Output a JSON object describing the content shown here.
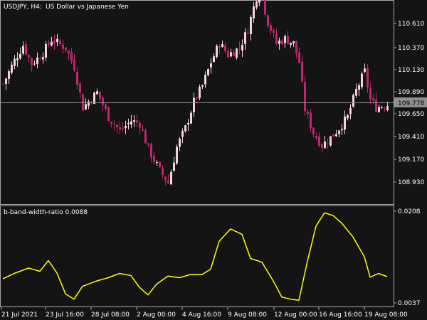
{
  "window": {
    "symbol": "USDJPY, H4:",
    "description": "US Dollar vs Japanese Yen"
  },
  "indicator": {
    "label": "b-band-width-ratio 0.0088"
  },
  "colors": {
    "background": "#141414",
    "bull_candle": "#f4d3d9",
    "bear_candle": "#c0266e",
    "indicator_line": "#ffff00",
    "axis": "#a8a8a8",
    "price_line": "#8c8c8c",
    "price_tag_bg": "#8f8f8f"
  },
  "price_scale": {
    "labels": [
      "110.610",
      "110.370",
      "110.130",
      "109.890",
      "109.650",
      "109.410",
      "109.170",
      "108.930"
    ],
    "current_price": "109.778"
  },
  "indicator_scale": {
    "labels": [
      "0.0208",
      "0.0037"
    ]
  },
  "time_scale": {
    "labels": [
      "21 Jul 2021",
      "23 Jul 16:00",
      "28 Jul 08:00",
      "2 Aug 00:00",
      "4 Aug 16:00",
      "9 Aug 08:00",
      "12 Aug 00:00",
      "16 Aug 16:00",
      "19 Aug 08:00"
    ]
  },
  "chart_data": {
    "type": "candlestick",
    "symbol": "USDJPY",
    "timeframe": "H4",
    "price_range": [
      108.81,
      111.1
    ],
    "close_path": [
      {
        "i": 0,
        "close": 109.97
      },
      {
        "i": 4,
        "close": 110.22
      },
      {
        "i": 7,
        "close": 110.38
      },
      {
        "i": 10,
        "close": 110.18
      },
      {
        "i": 14,
        "close": 110.3
      },
      {
        "i": 17,
        "close": 110.44
      },
      {
        "i": 22,
        "close": 110.35
      },
      {
        "i": 25,
        "close": 110.15
      },
      {
        "i": 28,
        "close": 109.72
      },
      {
        "i": 33,
        "close": 109.88
      },
      {
        "i": 37,
        "close": 109.62
      },
      {
        "i": 41,
        "close": 109.47
      },
      {
        "i": 45,
        "close": 109.58
      },
      {
        "i": 48,
        "close": 109.55
      },
      {
        "i": 51,
        "close": 109.28
      },
      {
        "i": 55,
        "close": 109.05
      },
      {
        "i": 58,
        "close": 108.92
      },
      {
        "i": 61,
        "close": 109.3
      },
      {
        "i": 64,
        "close": 109.5
      },
      {
        "i": 67,
        "close": 109.78
      },
      {
        "i": 70,
        "close": 109.95
      },
      {
        "i": 73,
        "close": 110.2
      },
      {
        "i": 76,
        "close": 110.4
      },
      {
        "i": 79,
        "close": 110.28
      },
      {
        "i": 83,
        "close": 110.35
      },
      {
        "i": 86,
        "close": 110.55
      },
      {
        "i": 88,
        "close": 110.78
      },
      {
        "i": 90,
        "close": 111.0
      },
      {
        "i": 93,
        "close": 110.62
      },
      {
        "i": 96,
        "close": 110.4
      },
      {
        "i": 99,
        "close": 110.45
      },
      {
        "i": 102,
        "close": 110.4
      },
      {
        "i": 104,
        "close": 110.2
      },
      {
        "i": 106,
        "close": 109.7
      },
      {
        "i": 109,
        "close": 109.45
      },
      {
        "i": 112,
        "close": 109.32
      },
      {
        "i": 115,
        "close": 109.4
      },
      {
        "i": 118,
        "close": 109.5
      },
      {
        "i": 121,
        "close": 109.62
      },
      {
        "i": 124,
        "close": 109.9
      },
      {
        "i": 127,
        "close": 110.1
      },
      {
        "i": 129,
        "close": 109.8
      },
      {
        "i": 131,
        "close": 109.72
      },
      {
        "i": 135,
        "close": 109.75
      }
    ],
    "indicator": {
      "name": "b-band-width-ratio",
      "value": 0.0088,
      "range": [
        0.0037,
        0.0208
      ],
      "points": [
        {
          "i": 0,
          "v": 0.0082
        },
        {
          "i": 4,
          "v": 0.0092
        },
        {
          "i": 9,
          "v": 0.0102
        },
        {
          "i": 13,
          "v": 0.0096
        },
        {
          "i": 16,
          "v": 0.0116
        },
        {
          "i": 19,
          "v": 0.0093
        },
        {
          "i": 22,
          "v": 0.0054
        },
        {
          "i": 25,
          "v": 0.0044
        },
        {
          "i": 28,
          "v": 0.0068
        },
        {
          "i": 33,
          "v": 0.0078
        },
        {
          "i": 37,
          "v": 0.0084
        },
        {
          "i": 41,
          "v": 0.0092
        },
        {
          "i": 45,
          "v": 0.0088
        },
        {
          "i": 48,
          "v": 0.0066
        },
        {
          "i": 51,
          "v": 0.0052
        },
        {
          "i": 54,
          "v": 0.0072
        },
        {
          "i": 58,
          "v": 0.0087
        },
        {
          "i": 62,
          "v": 0.0084
        },
        {
          "i": 66,
          "v": 0.009
        },
        {
          "i": 70,
          "v": 0.009
        },
        {
          "i": 73,
          "v": 0.01
        },
        {
          "i": 76,
          "v": 0.0152
        },
        {
          "i": 80,
          "v": 0.0175
        },
        {
          "i": 84,
          "v": 0.0165
        },
        {
          "i": 87,
          "v": 0.012
        },
        {
          "i": 91,
          "v": 0.0113
        },
        {
          "i": 95,
          "v": 0.0078
        },
        {
          "i": 98,
          "v": 0.0048
        },
        {
          "i": 101,
          "v": 0.0044
        },
        {
          "i": 104,
          "v": 0.0042
        },
        {
          "i": 107,
          "v": 0.0115
        },
        {
          "i": 110,
          "v": 0.018
        },
        {
          "i": 113,
          "v": 0.0205
        },
        {
          "i": 116,
          "v": 0.02
        },
        {
          "i": 119,
          "v": 0.0186
        },
        {
          "i": 123,
          "v": 0.016
        },
        {
          "i": 127,
          "v": 0.0123
        },
        {
          "i": 129,
          "v": 0.0085
        },
        {
          "i": 132,
          "v": 0.0092
        },
        {
          "i": 135,
          "v": 0.0086
        }
      ]
    }
  }
}
